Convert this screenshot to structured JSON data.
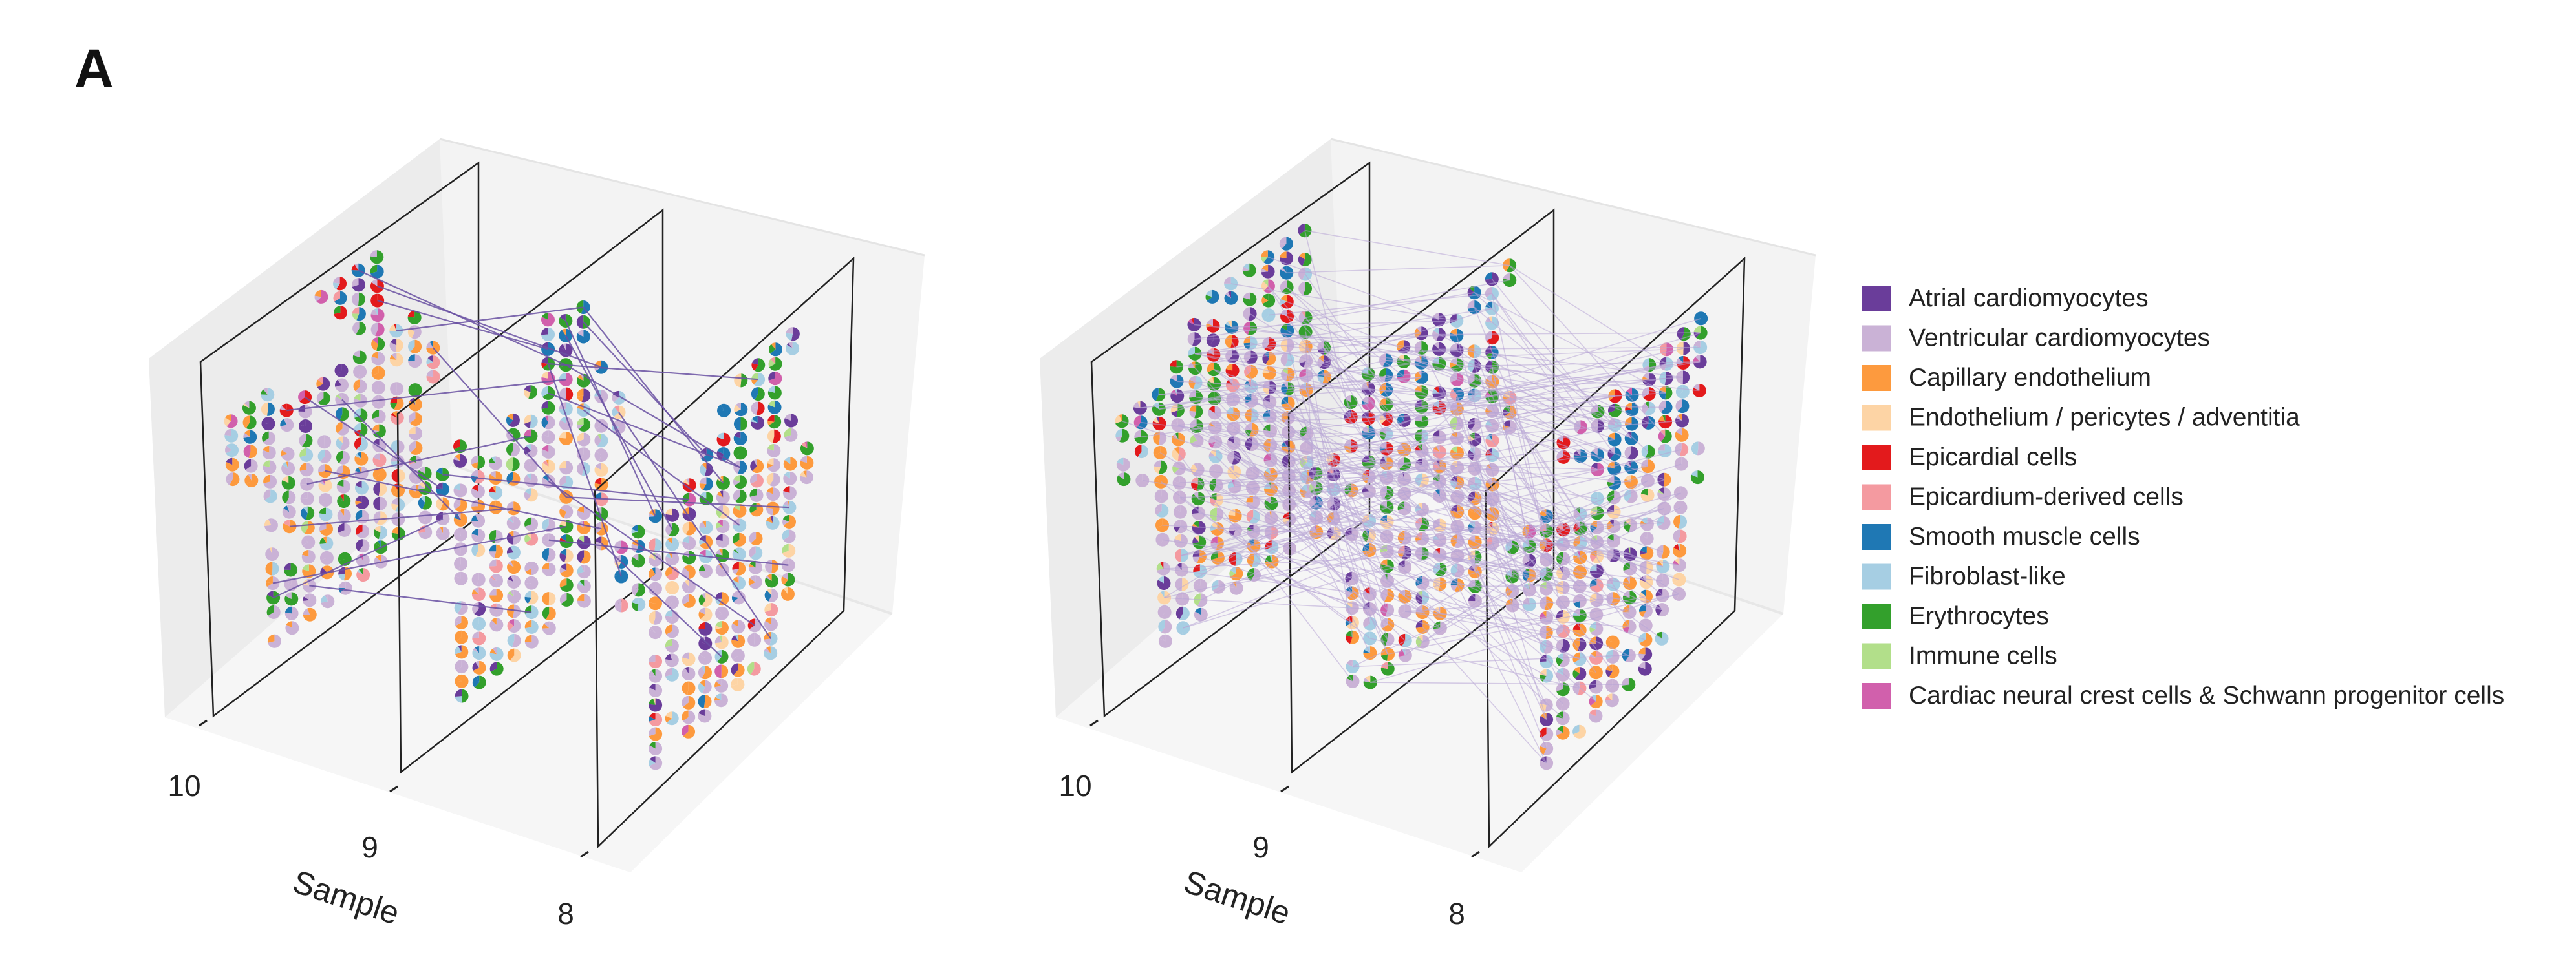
{
  "figure": {
    "panel_label": "A"
  },
  "chart_data": [
    {
      "type": "scatter",
      "subtype": "3d-spatial-pie-scatter",
      "title": "",
      "axis_title": "Sample",
      "sample_ticks": [
        "10",
        "9",
        "8"
      ],
      "alignment_links": "sparse",
      "link_color": "#6a51a3",
      "grid": true
    },
    {
      "type": "scatter",
      "subtype": "3d-spatial-pie-scatter",
      "title": "",
      "axis_title": "Sample",
      "sample_ticks": [
        "10",
        "9",
        "8"
      ],
      "alignment_links": "dense",
      "link_color": "#b9a7d6",
      "grid": true
    }
  ],
  "legend": {
    "placement": "right",
    "items": [
      {
        "label": "Atrial cardiomyocytes",
        "color": "#6a3d9a"
      },
      {
        "label": "Ventricular cardiomyocytes",
        "color": "#cab2d6"
      },
      {
        "label": "Capillary endothelium",
        "color": "#fd9a3e"
      },
      {
        "label": "Endothelium / pericytes / adventitia",
        "color": "#fdd4a5"
      },
      {
        "label": "Epicardial cells",
        "color": "#e31a1c"
      },
      {
        "label": "Epicardium-derived cells",
        "color": "#f49aa0"
      },
      {
        "label": "Smooth muscle cells",
        "color": "#1f78b4"
      },
      {
        "label": "Fibroblast-like",
        "color": "#a6cee3"
      },
      {
        "label": "Erythrocytes",
        "color": "#33a02c"
      },
      {
        "label": "Immune cells",
        "color": "#b2df8a"
      },
      {
        "label": "Cardiac neural crest cells & Schwann progenitor cells",
        "color": "#d160ac"
      }
    ]
  }
}
